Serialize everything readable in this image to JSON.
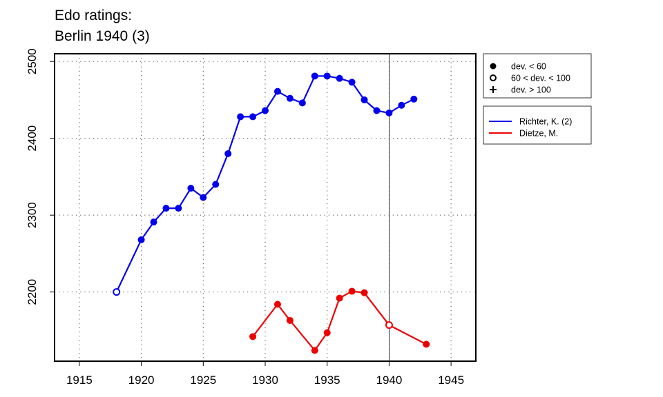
{
  "chart_data": {
    "type": "line",
    "title_lines": [
      "Edo ratings:",
      "Berlin 1940 (3)"
    ],
    "xlabel": "",
    "ylabel": "",
    "xlim": [
      1913,
      1947
    ],
    "ylim": [
      2110,
      2510
    ],
    "x_ticks": [
      1915,
      1920,
      1925,
      1930,
      1935,
      1940,
      1945
    ],
    "y_ticks": [
      2200,
      2300,
      2400,
      2500
    ],
    "grid": true,
    "highlight_year": 1940,
    "markers_legend": [
      {
        "symbol": "filled",
        "label": "dev. < 60"
      },
      {
        "symbol": "open",
        "label": "60 < dev. < 100"
      },
      {
        "symbol": "plus",
        "label": "dev. > 100"
      }
    ],
    "legend_position": "right",
    "series": [
      {
        "name": "Richter, K. (2)",
        "color": "#0000ee",
        "points": [
          {
            "x": 1918,
            "y": 2200,
            "m": "open"
          },
          {
            "x": 1920,
            "y": 2268,
            "m": "filled"
          },
          {
            "x": 1921,
            "y": 2291,
            "m": "filled"
          },
          {
            "x": 1922,
            "y": 2309,
            "m": "filled"
          },
          {
            "x": 1923,
            "y": 2309,
            "m": "filled"
          },
          {
            "x": 1924,
            "y": 2335,
            "m": "filled"
          },
          {
            "x": 1925,
            "y": 2323,
            "m": "filled"
          },
          {
            "x": 1926,
            "y": 2340,
            "m": "filled"
          },
          {
            "x": 1927,
            "y": 2380,
            "m": "filled"
          },
          {
            "x": 1928,
            "y": 2428,
            "m": "filled"
          },
          {
            "x": 1929,
            "y": 2428,
            "m": "filled"
          },
          {
            "x": 1930,
            "y": 2436,
            "m": "filled"
          },
          {
            "x": 1931,
            "y": 2461,
            "m": "filled"
          },
          {
            "x": 1932,
            "y": 2452,
            "m": "filled"
          },
          {
            "x": 1933,
            "y": 2446,
            "m": "filled"
          },
          {
            "x": 1934,
            "y": 2481,
            "m": "filled"
          },
          {
            "x": 1935,
            "y": 2481,
            "m": "filled"
          },
          {
            "x": 1936,
            "y": 2478,
            "m": "filled"
          },
          {
            "x": 1937,
            "y": 2473,
            "m": "filled"
          },
          {
            "x": 1938,
            "y": 2450,
            "m": "filled"
          },
          {
            "x": 1939,
            "y": 2436,
            "m": "filled"
          },
          {
            "x": 1940,
            "y": 2433,
            "m": "filled"
          },
          {
            "x": 1941,
            "y": 2443,
            "m": "filled"
          },
          {
            "x": 1942,
            "y": 2451,
            "m": "filled"
          }
        ]
      },
      {
        "name": "Dietze, M.",
        "color": "#ee0000",
        "points": [
          {
            "x": 1929,
            "y": 2142,
            "m": "filled"
          },
          {
            "x": 1931,
            "y": 2184,
            "m": "filled"
          },
          {
            "x": 1932,
            "y": 2163,
            "m": "filled"
          },
          {
            "x": 1934,
            "y": 2124,
            "m": "filled"
          },
          {
            "x": 1935,
            "y": 2147,
            "m": "filled"
          },
          {
            "x": 1936,
            "y": 2192,
            "m": "filled"
          },
          {
            "x": 1937,
            "y": 2201,
            "m": "filled"
          },
          {
            "x": 1938,
            "y": 2199,
            "m": "filled"
          },
          {
            "x": 1940,
            "y": 2157,
            "m": "open"
          },
          {
            "x": 1943,
            "y": 2132,
            "m": "filled"
          }
        ]
      }
    ]
  }
}
